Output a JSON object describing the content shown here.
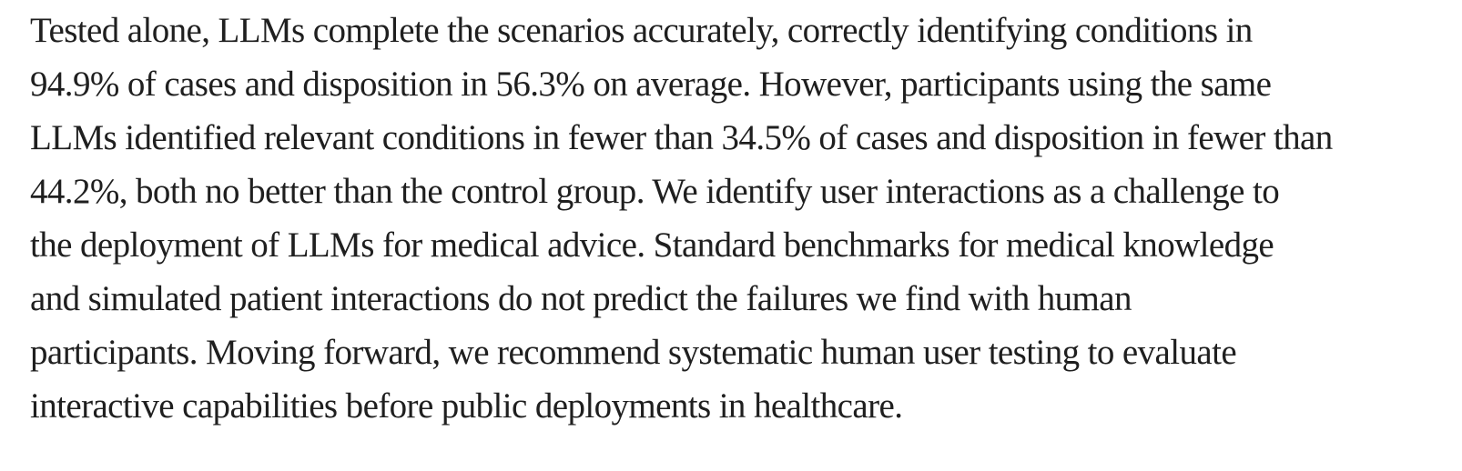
{
  "page": {
    "background_color": "#ffffff",
    "text_color": "#1f1f1f"
  },
  "abstract": {
    "lines": [
      "Tested alone, LLMs complete the scenarios accurately, correctly identifying conditions in",
      "94.9% of cases and disposition in 56.3% on average. However, participants using the same",
      "LLMs identified relevant conditions in fewer than 34.5% of cases and disposition in fewer than",
      "44.2%, both no better than the control group. We identify user interactions as a challenge to",
      "the deployment of LLMs for medical advice. Standard benchmarks for medical knowledge",
      "and simulated patient interactions do not predict the failures we find with human",
      "participants. Moving forward, we recommend systematic human user testing to evaluate",
      "interactive capabilities before public deployments in healthcare."
    ],
    "visible_stats": {
      "llm_alone_conditions_pct": "94.9%",
      "llm_alone_disposition_pct": "56.3%",
      "participants_conditions_pct": "34.5%",
      "participants_disposition_pct": "44.2%"
    }
  }
}
